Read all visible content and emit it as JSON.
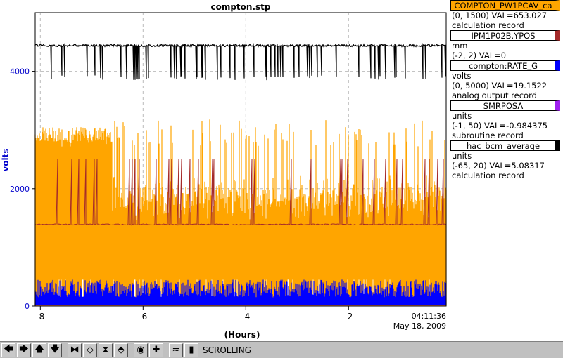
{
  "chart_data": {
    "type": "line",
    "title": "compton.stp",
    "xlabel": "(Hours)",
    "ylabel": "volts",
    "x_ticks": [
      "-8",
      "-6",
      "-4",
      "-2"
    ],
    "x_tick_values": [
      -8,
      -6,
      -4,
      -2
    ],
    "y_ticks": [
      "0",
      "2000",
      "4000"
    ],
    "y_tick_values": [
      0,
      2000,
      4000
    ],
    "xlim": [
      -8.1,
      -0.1
    ],
    "ylim": [
      0,
      5000
    ],
    "end_time": "04:11:36",
    "end_date": "May 18, 2009",
    "grid": true,
    "series": [
      {
        "name": "COMPTON_PW1PCAV_ca",
        "range": "(0, 1500)",
        "value": "VAL=653.027",
        "desc": "calculation record",
        "color": "#ffa500",
        "level": 1450,
        "spike_to": 2700,
        "early_level": 2800,
        "early_until": -6.6
      },
      {
        "name": "IPM1P02B.YPOS",
        "range": "(-2, 2)",
        "value": "VAL=0",
        "desc": "mm",
        "color": "#a52a2a",
        "level": 1390,
        "spike_to": 2500
      },
      {
        "name": "compton:RATE_G",
        "range": "(0, 5000)",
        "value": "VAL=19.1522",
        "desc": "volts",
        "extra": "analog output record",
        "color": "#0000ff",
        "level": 250,
        "spike_to": 450
      },
      {
        "name": "SMRPOSA",
        "range": "(-1, 50)",
        "value": "VAL=-0.984375",
        "desc": "units",
        "extra": "subroutine record",
        "color": "#a020f0",
        "level": 0
      },
      {
        "name": "hac_bcm_average",
        "range": "(-65, 20)",
        "value": "VAL=5.08317",
        "desc": "units",
        "extra": "calculation record",
        "color": "#000000",
        "level": 4440,
        "dip_to": 3850
      }
    ]
  },
  "toolbar": {
    "buttons": [
      {
        "name": "scroll-left-icon",
        "glyph": "🡄"
      },
      {
        "name": "scroll-right-icon",
        "glyph": "🡆"
      },
      {
        "name": "scroll-up-icon",
        "glyph": "🡅"
      },
      {
        "name": "scroll-down-icon",
        "glyph": "🡇"
      },
      {
        "name": "zoom-in-x-icon",
        "glyph": "⧓"
      },
      {
        "name": "zoom-out-x-icon",
        "glyph": "◇"
      },
      {
        "name": "zoom-in-y-icon",
        "glyph": "⧗"
      },
      {
        "name": "zoom-out-y-icon",
        "glyph": "⬘"
      },
      {
        "name": "auto-scale-icon",
        "glyph": "◉"
      },
      {
        "name": "add-icon",
        "glyph": "✚"
      },
      {
        "name": "config-icon",
        "glyph": "≂"
      },
      {
        "name": "pause-icon",
        "glyph": "▮"
      }
    ],
    "status": "SCROLLING"
  }
}
